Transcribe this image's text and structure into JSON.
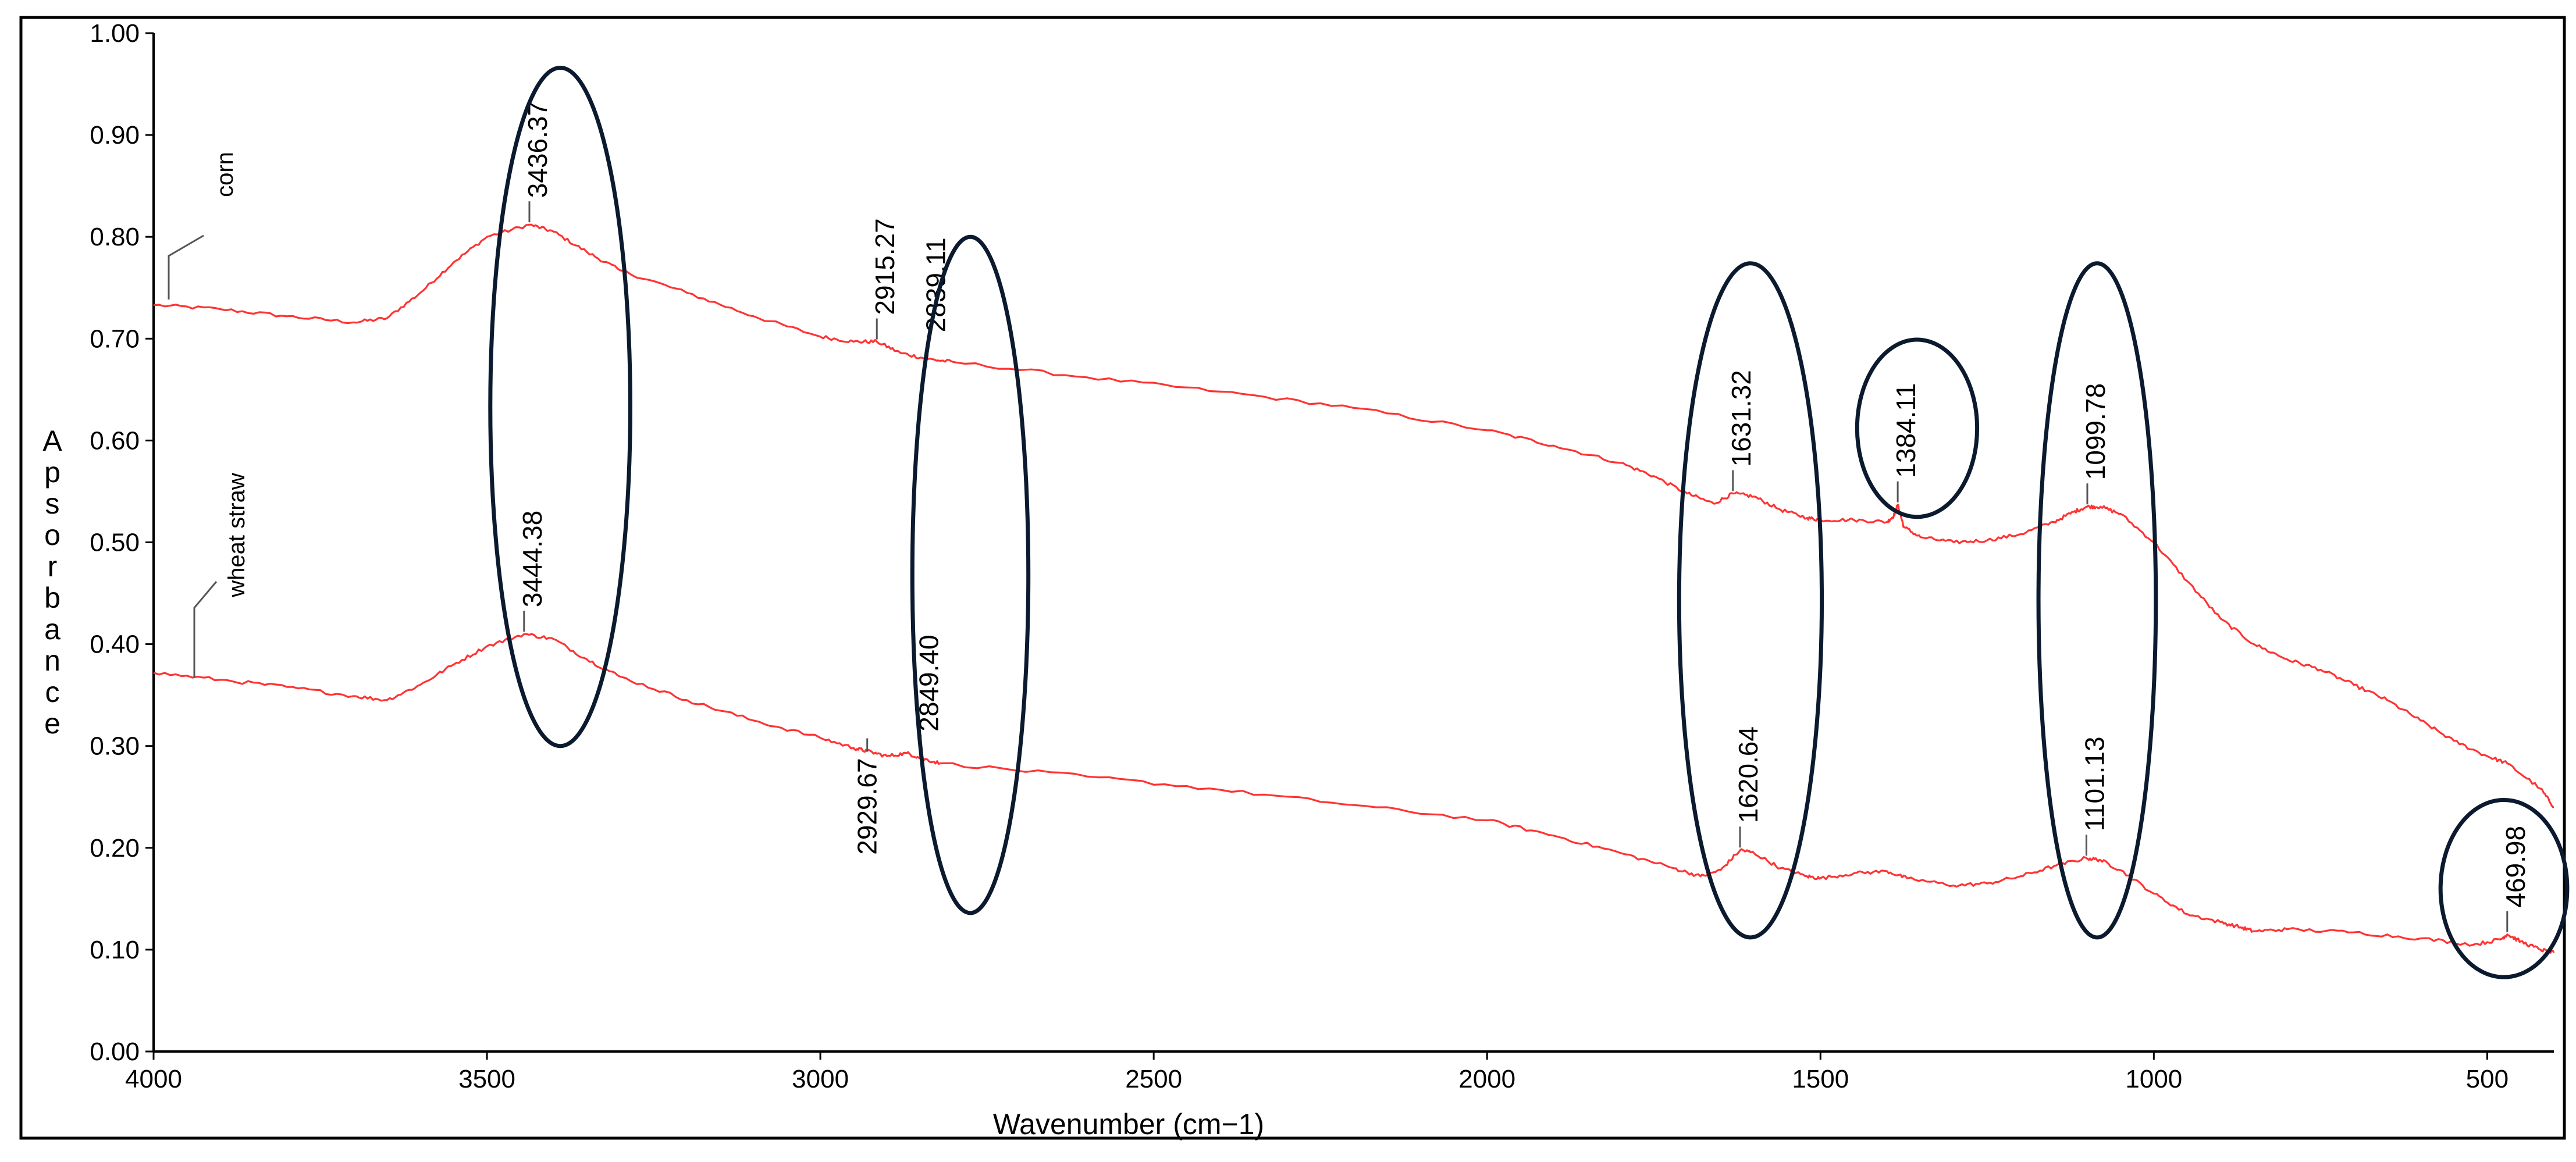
{
  "chart_data": {
    "type": "line",
    "title": "",
    "xlabel": "Wavenumber (cm−1)",
    "ylabel": "Apsorbance",
    "xlim": [
      4000,
      400
    ],
    "ylim": [
      0,
      1
    ],
    "x_reversed": true,
    "grid": false,
    "legend": "none",
    "x_ticks": [
      4000,
      3500,
      3000,
      2500,
      2000,
      1500,
      1000,
      500
    ],
    "y_ticks": [
      "0.00",
      "0.10",
      "0.20",
      "0.30",
      "0.40",
      "0.50",
      "0.60",
      "0.70",
      "0.80",
      "0.90",
      "1.00"
    ],
    "line_color": "#ff3333",
    "series": [
      {
        "name": "corn",
        "x": [
          4000,
          3900,
          3800,
          3700,
          3650,
          3600,
          3550,
          3500,
          3436,
          3400,
          3350,
          3300,
          3200,
          3100,
          3000,
          2950,
          2915,
          2880,
          2839,
          2800,
          2600,
          2400,
          2200,
          2000,
          1900,
          1800,
          1750,
          1700,
          1660,
          1631,
          1600,
          1560,
          1520,
          1500,
          1450,
          1400,
          1390,
          1384,
          1375,
          1350,
          1300,
          1250,
          1200,
          1150,
          1120,
          1100,
          1080,
          1050,
          1000,
          950,
          900,
          850,
          800,
          750,
          700,
          650,
          600,
          550,
          500,
          470,
          420,
          400
        ],
        "y": [
          0.733,
          0.729,
          0.722,
          0.716,
          0.72,
          0.745,
          0.775,
          0.8,
          0.812,
          0.805,
          0.785,
          0.767,
          0.745,
          0.722,
          0.702,
          0.697,
          0.697,
          0.686,
          0.68,
          0.677,
          0.662,
          0.648,
          0.632,
          0.61,
          0.595,
          0.578,
          0.565,
          0.548,
          0.538,
          0.548,
          0.545,
          0.532,
          0.524,
          0.522,
          0.522,
          0.52,
          0.526,
          0.537,
          0.515,
          0.505,
          0.5,
          0.502,
          0.508,
          0.52,
          0.53,
          0.535,
          0.535,
          0.528,
          0.5,
          0.462,
          0.425,
          0.4,
          0.385,
          0.375,
          0.36,
          0.345,
          0.325,
          0.305,
          0.29,
          0.283,
          0.258,
          0.24
        ]
      },
      {
        "name": "wheat straw",
        "x": [
          4000,
          3900,
          3800,
          3700,
          3650,
          3600,
          3550,
          3500,
          3444,
          3400,
          3350,
          3300,
          3200,
          3100,
          3000,
          2950,
          2930,
          2900,
          2870,
          2849,
          2820,
          2600,
          2400,
          2200,
          2000,
          1900,
          1800,
          1720,
          1680,
          1650,
          1620,
          1600,
          1560,
          1520,
          1500,
          1450,
          1400,
          1370,
          1300,
          1250,
          1200,
          1150,
          1101,
          1080,
          1050,
          1000,
          950,
          900,
          870,
          850,
          800,
          700,
          600,
          520,
          480,
          470,
          450,
          420,
          400
        ],
        "y": [
          0.372,
          0.365,
          0.358,
          0.349,
          0.345,
          0.36,
          0.38,
          0.398,
          0.41,
          0.405,
          0.385,
          0.368,
          0.345,
          0.325,
          0.308,
          0.298,
          0.295,
          0.29,
          0.293,
          0.288,
          0.283,
          0.27,
          0.257,
          0.242,
          0.227,
          0.212,
          0.195,
          0.18,
          0.172,
          0.178,
          0.198,
          0.195,
          0.18,
          0.172,
          0.17,
          0.175,
          0.177,
          0.17,
          0.163,
          0.165,
          0.172,
          0.182,
          0.19,
          0.188,
          0.178,
          0.155,
          0.135,
          0.127,
          0.122,
          0.118,
          0.12,
          0.117,
          0.111,
          0.105,
          0.11,
          0.115,
          0.108,
          0.1,
          0.097
        ]
      }
    ],
    "peak_labels": [
      {
        "text": "3436.37",
        "x": 3436.37,
        "y": 0.812,
        "series": "corn"
      },
      {
        "text": "2915.27",
        "x": 2915.27,
        "y": 0.697,
        "series": "corn"
      },
      {
        "text": "2839.11",
        "x": 2839.11,
        "y": 0.68,
        "series": "corn"
      },
      {
        "text": "1631.32",
        "x": 1631.32,
        "y": 0.548,
        "series": "corn"
      },
      {
        "text": "1384.11",
        "x": 1384.11,
        "y": 0.537,
        "series": "corn"
      },
      {
        "text": "1099.78",
        "x": 1099.78,
        "y": 0.535,
        "series": "corn"
      },
      {
        "text": "3444.38",
        "x": 3444.38,
        "y": 0.41,
        "series": "wheat straw"
      },
      {
        "text": "2929.67",
        "x": 2929.67,
        "y": 0.295,
        "series": "wheat straw",
        "below": true
      },
      {
        "text": "2849.40",
        "x": 2849.4,
        "y": 0.288,
        "series": "wheat straw"
      },
      {
        "text": "1620.64",
        "x": 1620.64,
        "y": 0.198,
        "series": "wheat straw"
      },
      {
        "text": "1101.13",
        "x": 1101.13,
        "y": 0.19,
        "series": "wheat straw"
      },
      {
        "text": "469.98",
        "x": 469.98,
        "y": 0.115,
        "series": "wheat straw"
      }
    ],
    "highlight_ellipses": [
      {
        "cx": 3390,
        "cy": 0.633,
        "rx": 105,
        "ry": 0.333
      },
      {
        "cx": 2775,
        "cy": 0.468,
        "rx": 87,
        "ry": 0.332
      },
      {
        "cx": 1605,
        "cy": 0.443,
        "rx": 107,
        "ry": 0.331
      },
      {
        "cx": 1355,
        "cy": 0.612,
        "rx": 90,
        "ry": 0.087
      },
      {
        "cx": 1085,
        "cy": 0.443,
        "rx": 88,
        "ry": 0.331
      },
      {
        "cx": 475,
        "cy": 0.16,
        "rx": 95,
        "ry": 0.087
      }
    ]
  }
}
